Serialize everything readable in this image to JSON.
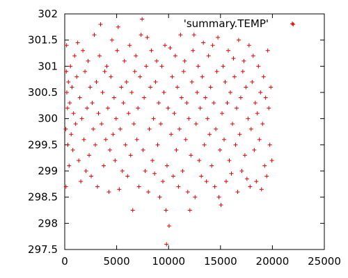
{
  "chart_data": {
    "type": "scatter",
    "title": "",
    "xlabel": "",
    "ylabel": "",
    "xlim": [
      0,
      25000
    ],
    "ylim": [
      297.5,
      302
    ],
    "x_ticks": [
      0,
      5000,
      10000,
      15000,
      20000,
      25000
    ],
    "y_ticks": [
      297.5,
      298,
      298.5,
      299,
      299.5,
      300,
      300.5,
      301,
      301.5,
      302
    ],
    "x_tick_labels": [
      "0",
      "5000",
      "10000",
      "15000",
      "20000",
      "25000"
    ],
    "y_tick_labels": [
      "297.5",
      "298",
      "298.5",
      "299",
      "299.5",
      "300",
      "300.5",
      "301",
      "301.5",
      "302"
    ],
    "grid": false,
    "legend_position": "top-right",
    "marker": "plus",
    "series": [
      {
        "name": "'summary.TEMP'",
        "color": "#e00000",
        "points": [
          [
            100,
            299.8
          ],
          [
            120,
            298.7
          ],
          [
            150,
            300.9
          ],
          [
            180,
            301.4
          ],
          [
            200,
            300.5
          ],
          [
            260,
            300.2
          ],
          [
            300,
            299.5
          ],
          [
            350,
            300.7
          ],
          [
            420,
            299.1
          ],
          [
            480,
            300.3
          ],
          [
            550,
            301.0
          ],
          [
            620,
            299.7
          ],
          [
            700,
            300.6
          ],
          [
            780,
            299.4
          ],
          [
            850,
            300.1
          ],
          [
            950,
            301.2
          ],
          [
            1050,
            299.9
          ],
          [
            1150,
            300.8
          ],
          [
            1250,
            301.45
          ],
          [
            1350,
            299.2
          ],
          [
            1450,
            300.4
          ],
          [
            1550,
            298.8
          ],
          [
            1650,
            300.0
          ],
          [
            1750,
            301.3
          ],
          [
            1850,
            299.6
          ],
          [
            1950,
            300.9
          ],
          [
            2050,
            299.0
          ],
          [
            2150,
            300.2
          ],
          [
            2250,
            301.1
          ],
          [
            2350,
            299.3
          ],
          [
            2450,
            300.6
          ],
          [
            2550,
            298.9
          ],
          [
            2650,
            300.3
          ],
          [
            2750,
            299.8
          ],
          [
            2850,
            301.6
          ],
          [
            2950,
            299.5
          ],
          [
            3050,
            300.7
          ],
          [
            3150,
            298.7
          ],
          [
            3250,
            300.1
          ],
          [
            3350,
            301.2
          ],
          [
            3450,
            301.8
          ],
          [
            3550,
            299.9
          ],
          [
            3650,
            300.5
          ],
          [
            3750,
            299.1
          ],
          [
            3850,
            300.9
          ],
          [
            3950,
            299.6
          ],
          [
            4050,
            301.0
          ],
          [
            4150,
            300.2
          ],
          [
            4250,
            298.6
          ],
          [
            4350,
            299.4
          ],
          [
            4450,
            300.8
          ],
          [
            4550,
            301.5
          ],
          [
            4650,
            299.7
          ],
          [
            4750,
            300.4
          ],
          [
            4850,
            299.2
          ],
          [
            4950,
            300.0
          ],
          [
            5050,
            301.3
          ],
          [
            5150,
            301.75
          ],
          [
            5250,
            298.65
          ],
          [
            5350,
            299.8
          ],
          [
            5450,
            300.6
          ],
          [
            5550,
            299.0
          ],
          [
            5650,
            300.3
          ],
          [
            5750,
            301.1
          ],
          [
            5850,
            299.5
          ],
          [
            5950,
            300.7
          ],
          [
            6050,
            298.9
          ],
          [
            6150,
            300.1
          ],
          [
            6250,
            301.4
          ],
          [
            6350,
            299.3
          ],
          [
            6450,
            300.5
          ],
          [
            6550,
            298.25
          ],
          [
            6650,
            299.9
          ],
          [
            6750,
            300.9
          ],
          [
            6850,
            301.2
          ],
          [
            6950,
            299.6
          ],
          [
            7050,
            300.2
          ],
          [
            7150,
            298.7
          ],
          [
            7250,
            300.8
          ],
          [
            7350,
            301.6
          ],
          [
            7450,
            301.9
          ],
          [
            7550,
            299.4
          ],
          [
            7650,
            300.4
          ],
          [
            7750,
            299.0
          ],
          [
            7850,
            301.0
          ],
          [
            7950,
            301.55
          ],
          [
            8050,
            298.6
          ],
          [
            8150,
            299.8
          ],
          [
            8250,
            300.6
          ],
          [
            8350,
            301.3
          ],
          [
            8450,
            299.2
          ],
          [
            8550,
            300.0
          ],
          [
            8650,
            298.95
          ],
          [
            8750,
            300.7
          ],
          [
            8850,
            301.1
          ],
          [
            8950,
            299.5
          ],
          [
            9050,
            300.3
          ],
          [
            9150,
            298.5
          ],
          [
            9250,
            299.9
          ],
          [
            9350,
            301.0
          ],
          [
            9450,
            298.8
          ],
          [
            9550,
            300.5
          ],
          [
            9650,
            301.4
          ],
          [
            9750,
            298.25
          ],
          [
            9800,
            297.6
          ],
          [
            9850,
            299.1
          ],
          [
            9950,
            300.2
          ],
          [
            10050,
            297.95
          ],
          [
            10150,
            301.35
          ],
          [
            10250,
            299.7
          ],
          [
            10350,
            300.8
          ],
          [
            10450,
            298.9
          ],
          [
            10550,
            300.1
          ],
          [
            10650,
            301.2
          ],
          [
            10750,
            299.4
          ],
          [
            10850,
            300.6
          ],
          [
            10950,
            298.7
          ],
          [
            11050,
            299.8
          ],
          [
            11150,
            301.6
          ],
          [
            11250,
            300.4
          ],
          [
            11350,
            299.0
          ],
          [
            11450,
            300.9
          ],
          [
            11550,
            301.1
          ],
          [
            11650,
            299.6
          ],
          [
            11750,
            300.3
          ],
          [
            11850,
            298.6
          ],
          [
            11950,
            300.0
          ],
          [
            12050,
            298.25
          ],
          [
            12150,
            299.3
          ],
          [
            12250,
            300.7
          ],
          [
            12350,
            301.3
          ],
          [
            12450,
            301.6
          ],
          [
            12550,
            298.5
          ],
          [
            12650,
            299.9
          ],
          [
            12750,
            300.5
          ],
          [
            12850,
            301.0
          ],
          [
            12950,
            299.2
          ],
          [
            13050,
            300.2
          ],
          [
            13150,
            298.9
          ],
          [
            13250,
            300.8
          ],
          [
            13350,
            301.45
          ],
          [
            13450,
            299.5
          ],
          [
            13550,
            300.4
          ],
          [
            13650,
            298.8
          ],
          [
            13750,
            300.0
          ],
          [
            13850,
            301.2
          ],
          [
            13950,
            299.7
          ],
          [
            14050,
            300.6
          ],
          [
            14150,
            299.1
          ],
          [
            14250,
            301.4
          ],
          [
            14350,
            300.3
          ],
          [
            14450,
            298.7
          ],
          [
            14550,
            299.8
          ],
          [
            14650,
            300.9
          ],
          [
            14750,
            301.55
          ],
          [
            14850,
            298.5
          ],
          [
            14950,
            299.4
          ],
          [
            15050,
            298.35
          ],
          [
            15150,
            300.1
          ],
          [
            15250,
            301.0
          ],
          [
            15350,
            299.6
          ],
          [
            15450,
            300.7
          ],
          [
            15550,
            298.8
          ],
          [
            15650,
            300.3
          ],
          [
            15750,
            301.3
          ],
          [
            15850,
            299.2
          ],
          [
            15950,
            300.5
          ],
          [
            16050,
            298.95
          ],
          [
            16150,
            299.9
          ],
          [
            16250,
            301.15
          ],
          [
            16350,
            300.8
          ],
          [
            16450,
            299.5
          ],
          [
            16550,
            300.2
          ],
          [
            16650,
            298.6
          ],
          [
            16750,
            301.5
          ],
          [
            16850,
            299.7
          ],
          [
            16950,
            300.4
          ],
          [
            17050,
            299.0
          ],
          [
            17150,
            300.9
          ],
          [
            17250,
            301.1
          ],
          [
            17350,
            299.3
          ],
          [
            17450,
            300.6
          ],
          [
            17550,
            298.85
          ],
          [
            17650,
            300.0
          ],
          [
            17750,
            301.4
          ],
          [
            17850,
            298.7
          ],
          [
            17950,
            299.8
          ],
          [
            18050,
            300.7
          ],
          [
            18150,
            301.2
          ],
          [
            18250,
            299.4
          ],
          [
            18350,
            300.3
          ],
          [
            18450,
            298.8
          ],
          [
            18550,
            300.1
          ],
          [
            18650,
            301.0
          ],
          [
            18750,
            299.6
          ],
          [
            18850,
            300.5
          ],
          [
            18950,
            298.65
          ],
          [
            19050,
            299.9
          ],
          [
            19150,
            300.8
          ],
          [
            19250,
            299.1
          ],
          [
            19350,
            300.4
          ],
          [
            19450,
            298.9
          ],
          [
            19550,
            301.3
          ],
          [
            19650,
            300.2
          ],
          [
            19750,
            299.5
          ],
          [
            19850,
            300.6
          ],
          [
            19950,
            299.2
          ],
          [
            22000,
            301.8
          ]
        ]
      }
    ]
  }
}
